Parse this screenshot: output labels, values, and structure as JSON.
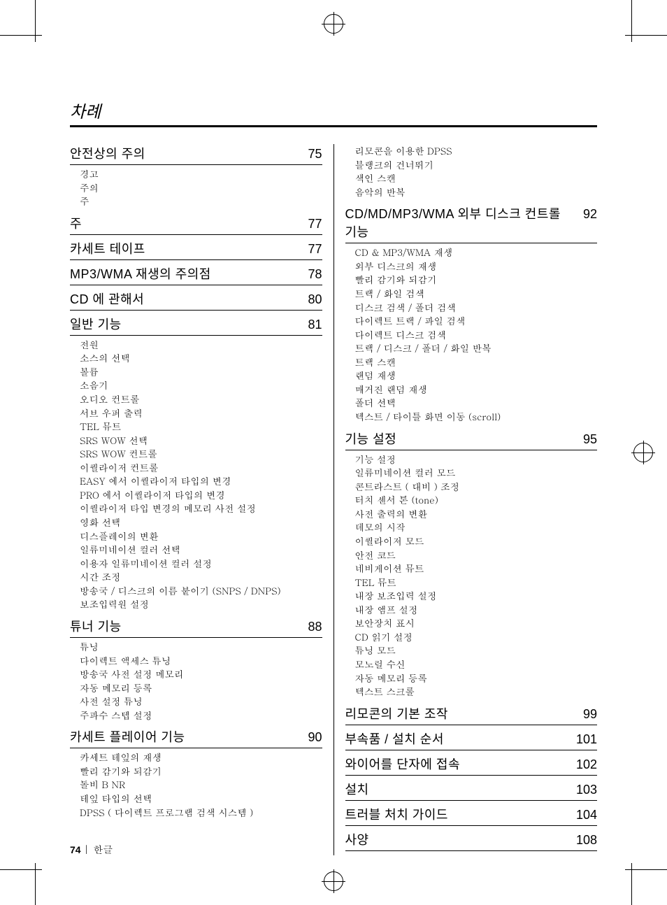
{
  "doc_title": "차례",
  "page_footer_num": "74",
  "page_footer_sep": " |  ",
  "page_footer_lang": "한글",
  "left": [
    {
      "title": "안전상의 주의",
      "page": "75",
      "items": [
        "경고",
        "주의",
        "주"
      ]
    },
    {
      "title": "주",
      "page": "77",
      "items": []
    },
    {
      "title": "카세트 테이프",
      "page": "77",
      "items": []
    },
    {
      "title": "MP3/WMA 재생의 주의점",
      "page": "78",
      "items": []
    },
    {
      "title": "CD 에 관해서",
      "page": "80",
      "items": []
    },
    {
      "title": "일반 기능",
      "page": "81",
      "items": [
        "전원",
        "소스의 선택",
        "볼륨",
        "소음기",
        "오디오 컨트롤",
        "서브 우퍼 출력",
        "TEL 뮤트",
        "SRS WOW 선택",
        "SRS WOW 컨트롤",
        "이퀄라이저 컨트롤",
        "EASY 에서 이퀄라이저 타입의 변경",
        "PRO 에서 이퀄라이저 타입의 변경",
        "이퀄라이저 타입 변경의 메모리 사전 설정",
        "영화 선택",
        "디스플레이의 변환",
        "일류미네이션 컬러 선택",
        "이용자 일류미네이션 컬러 설정",
        "시간 조정",
        "방송국 / 디스크의 이름 붙이기 (SNPS / DNPS)",
        "보조입력원 설정"
      ]
    },
    {
      "title": "튜너 기능",
      "page": "88",
      "items": [
        "튜닝",
        "다이렉트 액세스 튜닝",
        "방송국 사전 설정 메모리",
        "자동 메모리 등록",
        "사전 설정 튜닝",
        "주파수 스텝 설정"
      ]
    },
    {
      "title": "카세트 플레이어 기능",
      "page": "90",
      "items": [
        "카세트 테잎의 재생",
        "빨리 감기와 되감기",
        "돌비 B NR",
        "테잎 타입의 선택",
        "DPSS ( 다이렉트 프로그램 검색 시스템 )"
      ]
    }
  ],
  "right_lead_items": [
    "리모콘을 이용한 DPSS",
    "블랭크의 건너뛰기",
    "색인 스캔",
    "음악의 반복"
  ],
  "right": [
    {
      "title": "CD/MD/MP3/WMA 외부 디스크 컨트롤 기능",
      "page": "92",
      "items": [
        "CD & MP3/WMA 재생",
        "외부 디스크의 재생",
        "빨리 감기와 되감기",
        "트랙 / 화일 검색",
        "디스크 검색 / 폴더 검색",
        "다이렉트 트랙 / 파일 검색",
        "다이렉트 디스크 검색",
        "트랙 / 디스크 / 폴더 / 화일 반복",
        "트랙 스캔",
        "랜덤 재생",
        "매거진 랜덤 재생",
        "폴더 선택",
        "텍스트 / 타이틀 화면 이동 (scroll)"
      ]
    },
    {
      "title": "기능 설정",
      "page": "95",
      "items": [
        "기능 설정",
        "일류미네이션 컬러 모드",
        "콘트라스트 ( 대비 ) 조정",
        "터치 센서 톤 (tone)",
        "사전 출력의 변환",
        "데모의 시작",
        "이퀄라이저 모드",
        "안전 코드",
        "네비게이션 뮤트",
        "TEL 뮤트",
        "내장 보조입력 설정",
        "내장 앰프 설정",
        "보안장치 표시",
        "CD 읽기 설정",
        "튜닝 모드",
        "모노럴 수신",
        "자동 메모리 등록",
        "텍스트 스크롤"
      ]
    },
    {
      "title": "리모콘의 기본 조작",
      "page": "99",
      "items": []
    },
    {
      "title": "부속품 / 설치 순서",
      "page": "101",
      "items": []
    },
    {
      "title": "와이어를 단자에 접속",
      "page": "102",
      "items": []
    },
    {
      "title": "설치",
      "page": "103",
      "items": []
    },
    {
      "title": "트러블 처치 가이드",
      "page": "104",
      "items": []
    },
    {
      "title": "사양",
      "page": "108",
      "items": []
    }
  ]
}
